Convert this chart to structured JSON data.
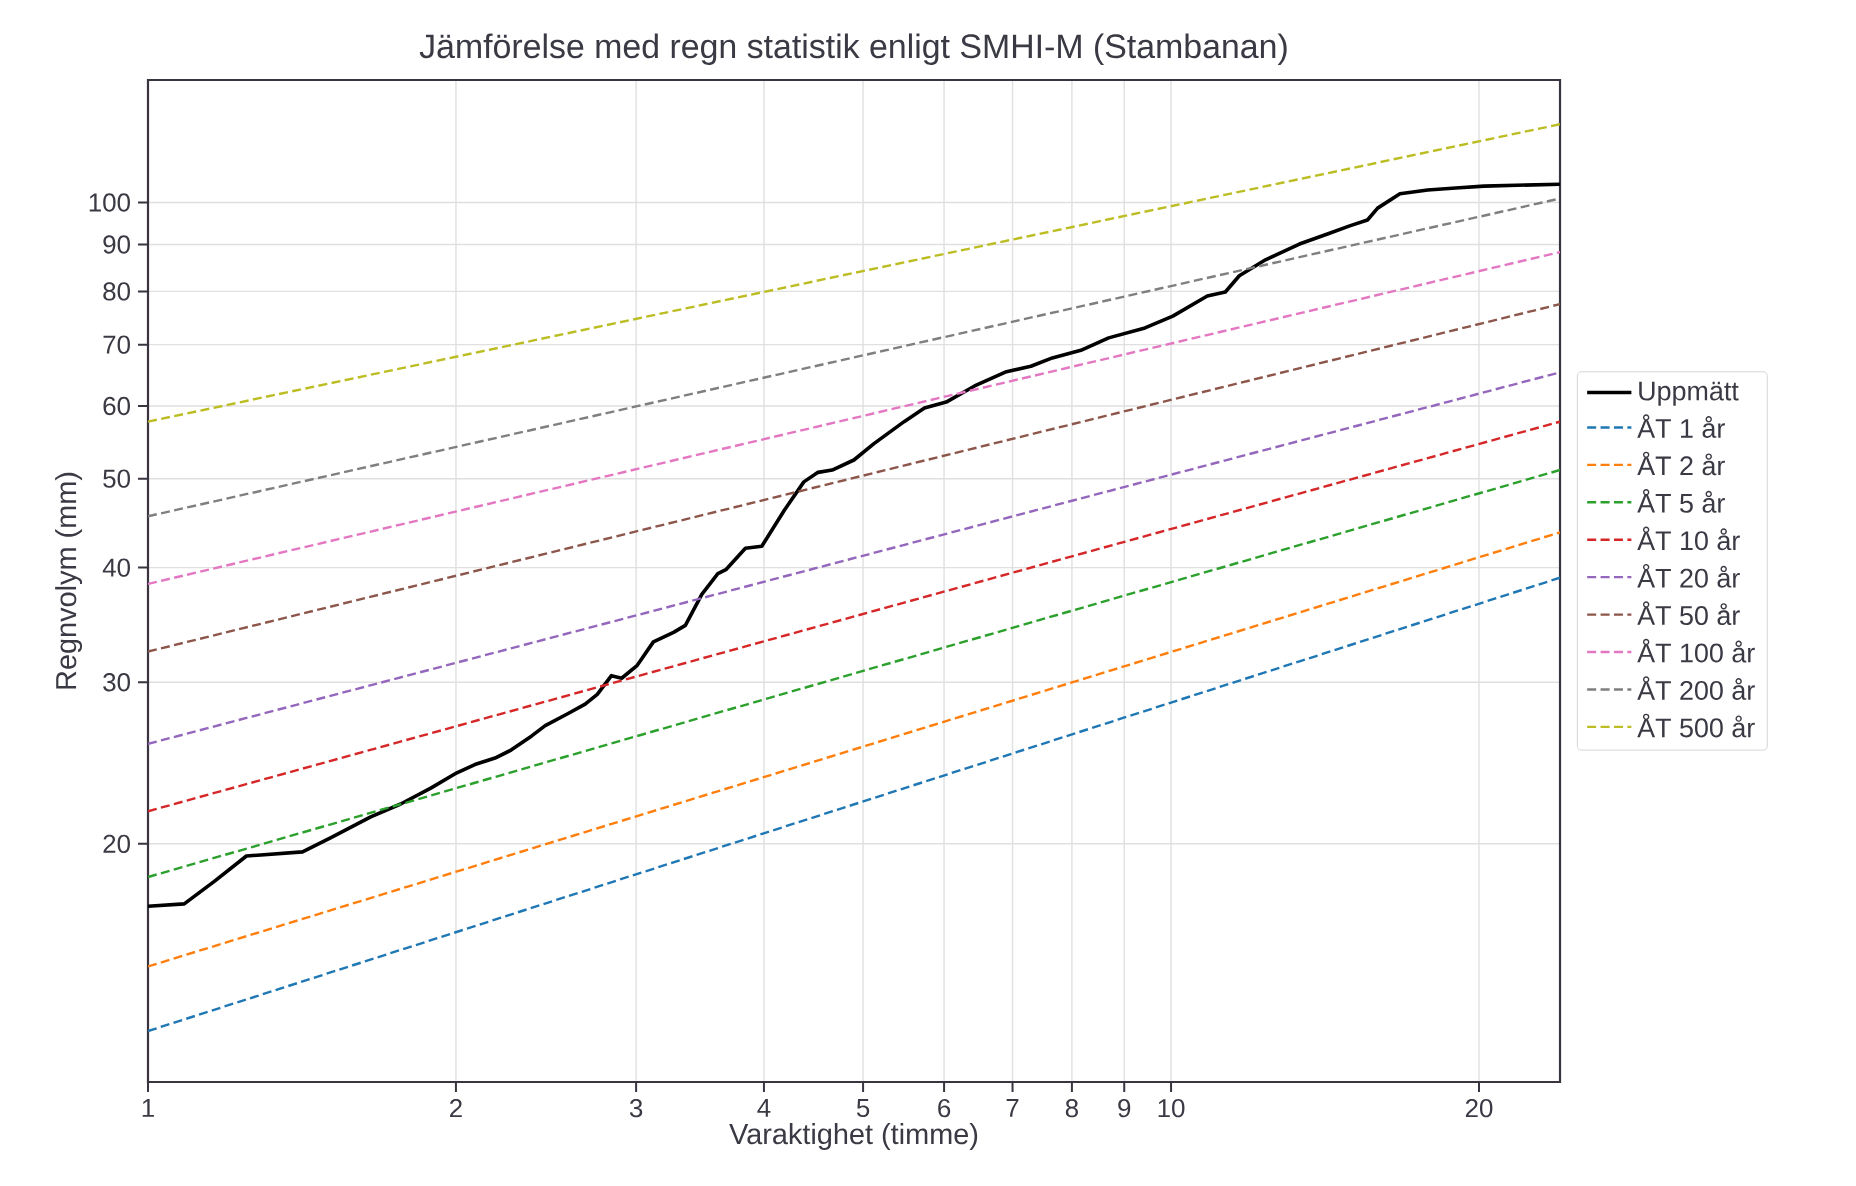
{
  "chart_data": {
    "type": "line",
    "title": "Jämförelse med regn statistik enligt SMHI-M (Stambanan)",
    "xlabel": "Varaktighet (timme)",
    "ylabel": "Regnvolym (mm)",
    "log": "xy",
    "grid": true,
    "legend": "right",
    "marker": "none",
    "xlim": [
      1,
      24
    ],
    "ylim": [
      11,
      136
    ],
    "xticks": [
      1,
      2,
      3,
      4,
      5,
      6,
      7,
      8,
      9,
      10,
      20
    ],
    "yticks": [
      20,
      30,
      40,
      50,
      60,
      70,
      80,
      90,
      100
    ],
    "series": [
      {
        "name": "Uppmätt",
        "color": "#000000",
        "line_style": "solid",
        "x": [
          1,
          1.085,
          1.161,
          1.248,
          1.416,
          1.508,
          1.651,
          1.766,
          1.89,
          2.004,
          2.087,
          2.184,
          2.264,
          2.37,
          2.445,
          2.569,
          2.675,
          2.749,
          2.838,
          2.904,
          3.008,
          3.119,
          3.264,
          3.352,
          3.478,
          3.606,
          3.672,
          3.837,
          3.981,
          4.188,
          4.376,
          4.518,
          4.664,
          4.898,
          5.124,
          5.484,
          5.741,
          6.029,
          6.427,
          6.905,
          7.295,
          7.656,
          8.163,
          8.69,
          9.43,
          10.04,
          10.85,
          11.3,
          11.66,
          12.37,
          13.35,
          14.22,
          14.95,
          15.56,
          15.92,
          16.74,
          17.82,
          18.98,
          20.23,
          24
        ],
        "values": [
          17.1,
          17.2,
          18.2,
          19.4,
          19.6,
          20.3,
          21.4,
          22.1,
          23.0,
          23.9,
          24.4,
          24.8,
          25.3,
          26.2,
          26.9,
          27.7,
          28.4,
          29.1,
          30.5,
          30.3,
          31.3,
          33.2,
          34.0,
          34.6,
          37.4,
          39.4,
          39.8,
          42.0,
          42.2,
          46.2,
          49.6,
          50.8,
          51.1,
          52.4,
          54.6,
          57.7,
          59.7,
          60.6,
          63.1,
          65.4,
          66.3,
          67.7,
          69.0,
          71.2,
          73.0,
          75.2,
          79.1,
          79.9,
          83.2,
          86.6,
          90.1,
          92.4,
          94.3,
          95.7,
          98.6,
          102.2,
          103.2,
          103.7,
          104.2,
          104.7
        ]
      },
      {
        "name": "ÅT 1 år",
        "color": "#1f77b4",
        "line_style": "dashed",
        "x": [
          1,
          24
        ],
        "values": [
          12.5,
          39.0
        ]
      },
      {
        "name": "ÅT 2 år",
        "color": "#ff7f0e",
        "line_style": "dashed",
        "x": [
          1,
          24
        ],
        "values": [
          14.7,
          43.7
        ]
      },
      {
        "name": "ÅT 5 år",
        "color": "#2ca02c",
        "line_style": "dashed",
        "x": [
          1,
          24
        ],
        "values": [
          18.4,
          51.1
        ]
      },
      {
        "name": "ÅT 10 år",
        "color": "#d62728",
        "line_style": "dashed",
        "x": [
          1,
          24
        ],
        "values": [
          21.7,
          57.7
        ]
      },
      {
        "name": "ÅT 20 år",
        "color": "#9467bd",
        "line_style": "dashed",
        "x": [
          1,
          24
        ],
        "values": [
          25.7,
          65.3
        ]
      },
      {
        "name": "ÅT 50 år",
        "color": "#8c564b",
        "line_style": "dashed",
        "x": [
          1,
          24
        ],
        "values": [
          32.4,
          77.5
        ]
      },
      {
        "name": "ÅT 100 år",
        "color": "#e377c2",
        "line_style": "dashed",
        "x": [
          1,
          24
        ],
        "values": [
          38.4,
          88.3
        ]
      },
      {
        "name": "ÅT 200 år",
        "color": "#7f7f7f",
        "line_style": "dashed",
        "x": [
          1,
          24
        ],
        "values": [
          45.5,
          101
        ]
      },
      {
        "name": "ÅT 500 år",
        "color": "#bcbd22",
        "line_style": "dashed",
        "x": [
          1,
          24
        ],
        "values": [
          57.7,
          121.7
        ]
      }
    ]
  }
}
